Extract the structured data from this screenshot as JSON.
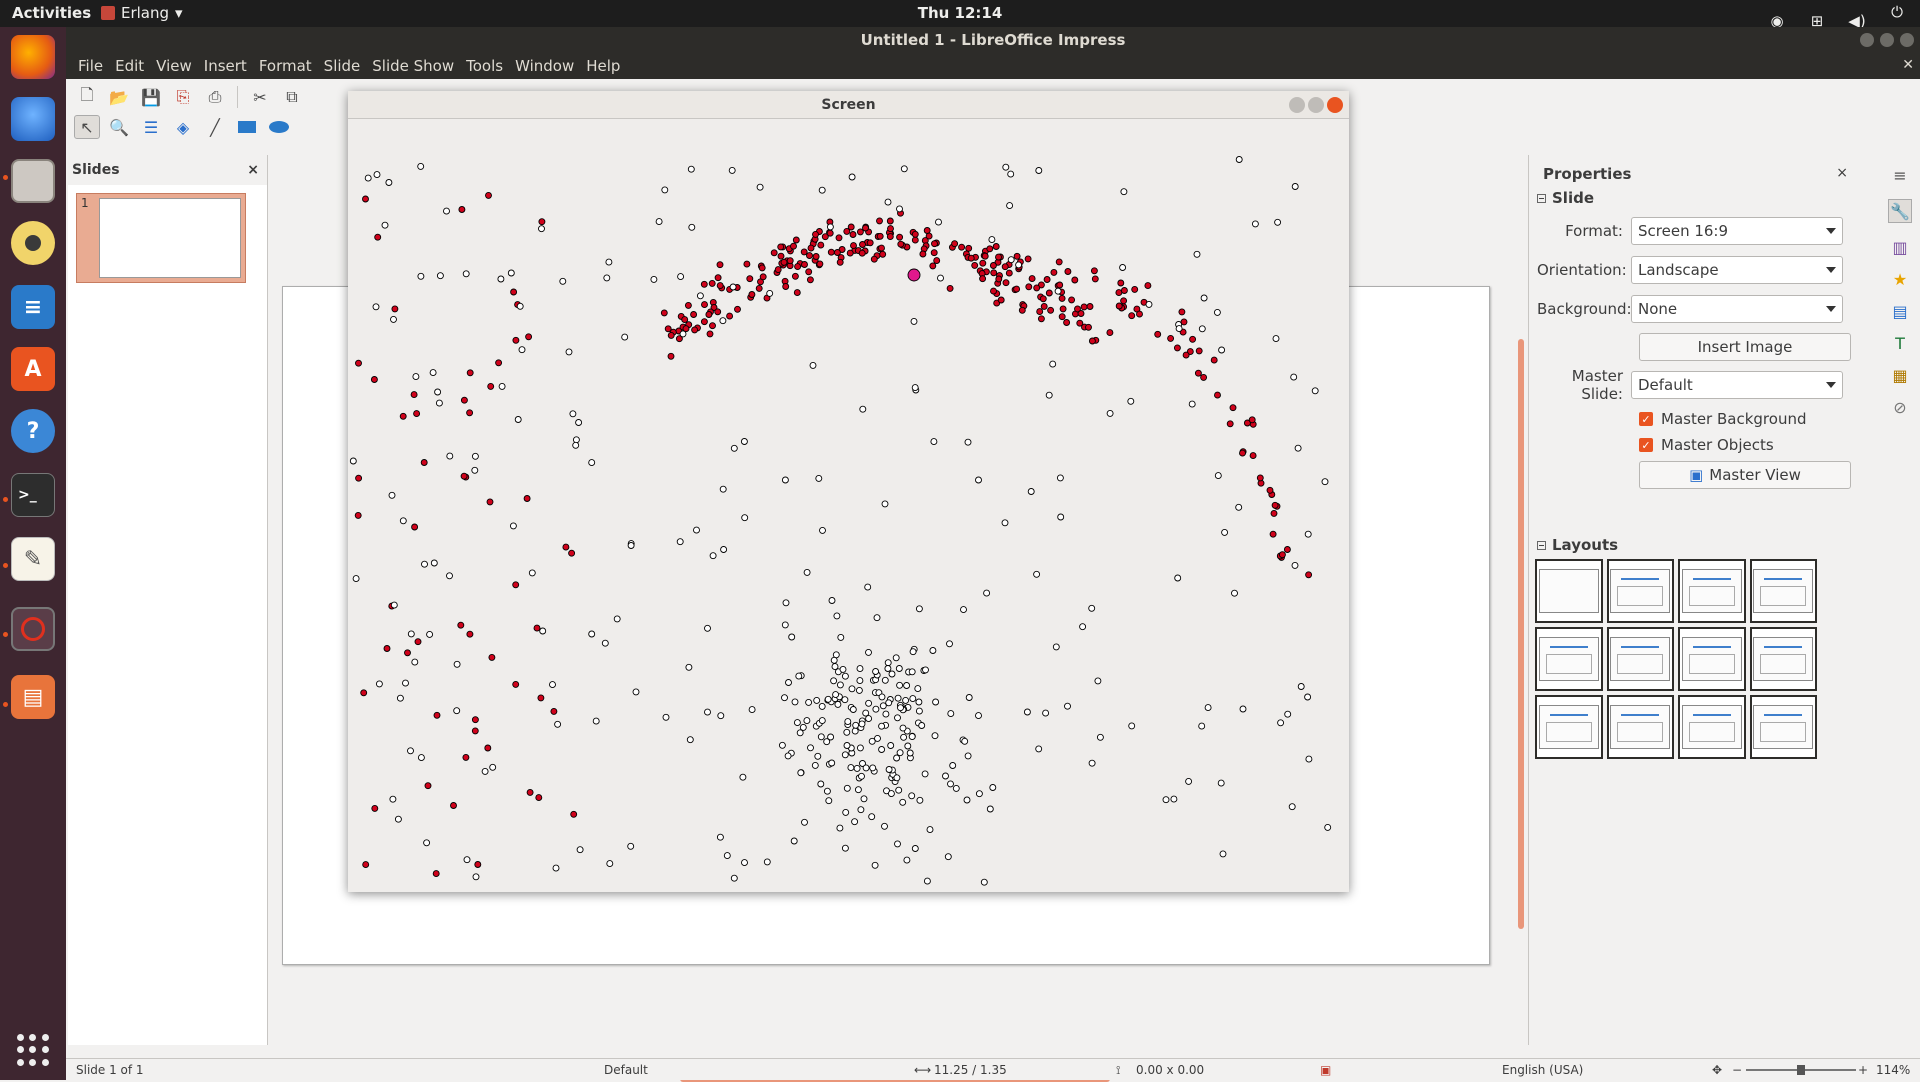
{
  "topbar": {
    "activities": "Activities",
    "app_menu": "Erlang",
    "clock": "Thu 12:14"
  },
  "dock": {
    "items": [
      "firefox-icon",
      "thunderbird-icon",
      "files-icon",
      "rhythmbox-icon",
      "writer-icon",
      "software-center-icon",
      "help-icon",
      "terminal-icon",
      "text-editor-icon",
      "erlang-observer-icon",
      "impress-icon"
    ]
  },
  "window": {
    "title": "Untitled 1 - LibreOffice Impress",
    "menu": [
      "File",
      "Edit",
      "View",
      "Insert",
      "Format",
      "Slide",
      "Slide Show",
      "Tools",
      "Window",
      "Help"
    ]
  },
  "slides_pane": {
    "title": "Slides",
    "close": "×",
    "slide_number": "1"
  },
  "properties": {
    "title": "Properties",
    "close": "×",
    "slide_section": "Slide",
    "format_label": "Format:",
    "format_value": "Screen 16:9",
    "orientation_label": "Orientation:",
    "orientation_value": "Landscape",
    "background_label": "Background:",
    "background_value": "None",
    "insert_image": "Insert Image",
    "master_slide_label": "Master Slide:",
    "master_slide_value": "Default",
    "master_background": "Master Background",
    "master_objects": "Master Objects",
    "master_view": "Master View",
    "layouts_section": "Layouts"
  },
  "statusbar": {
    "slide_info": "Slide 1 of 1",
    "master": "Default",
    "position": "11.25 / 1.35",
    "size": "0.00 x 0.00",
    "language": "English (USA)",
    "zoom": "114%"
  },
  "screen_window": {
    "title": "Screen",
    "colors": {
      "red": "#d0021b",
      "white": "#ffffff",
      "outline": "#000000",
      "highlight": "#e0188c"
    }
  }
}
